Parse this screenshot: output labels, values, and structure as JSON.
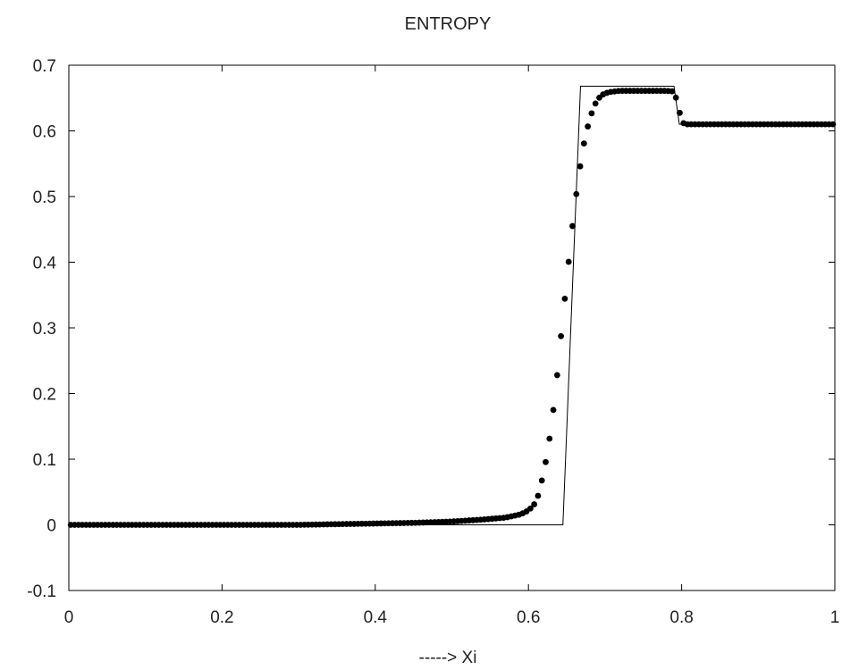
{
  "chart_data": {
    "type": "line",
    "title": "ENTROPY",
    "xlabel": "-----> Xi",
    "ylabel": "",
    "xlim": [
      0,
      1
    ],
    "ylim": [
      -0.1,
      0.7
    ],
    "grid": false,
    "x_ticks": [
      "0",
      "0.2",
      "0.4",
      "0.6",
      "0.8",
      "1"
    ],
    "y_ticks": [
      "-0.1",
      "0",
      "0.1",
      "0.2",
      "0.3",
      "0.4",
      "0.5",
      "0.6",
      "0.7"
    ],
    "series": [
      {
        "style": "line",
        "x": [
          0,
          0.645,
          0.668,
          0.79,
          0.797,
          1.0
        ],
        "y": [
          0,
          0,
          0.668,
          0.668,
          0.61,
          0.61
        ]
      },
      {
        "style": "markers",
        "x": [
          0.0,
          0.1,
          0.2,
          0.3,
          0.35,
          0.4,
          0.45,
          0.5,
          0.54,
          0.57,
          0.59,
          0.6,
          0.607,
          0.612,
          0.616,
          0.62,
          0.624,
          0.628,
          0.632,
          0.636,
          0.64,
          0.644,
          0.648,
          0.652,
          0.656,
          0.66,
          0.664,
          0.668,
          0.672,
          0.676,
          0.68,
          0.684,
          0.688,
          0.692,
          0.698,
          0.705,
          0.712,
          0.72,
          0.74,
          0.76,
          0.78,
          0.79,
          0.794,
          0.798,
          0.802,
          0.806,
          0.81,
          0.85,
          0.9,
          0.95,
          1.0
        ],
        "y": [
          0.0,
          0.0,
          0.0,
          0.0,
          0.001,
          0.002,
          0.003,
          0.005,
          0.008,
          0.011,
          0.016,
          0.022,
          0.03,
          0.042,
          0.06,
          0.08,
          0.105,
          0.135,
          0.17,
          0.21,
          0.258,
          0.305,
          0.35,
          0.395,
          0.44,
          0.48,
          0.518,
          0.55,
          0.578,
          0.6,
          0.618,
          0.632,
          0.643,
          0.65,
          0.656,
          0.659,
          0.66,
          0.661,
          0.661,
          0.661,
          0.661,
          0.66,
          0.645,
          0.625,
          0.612,
          0.61,
          0.61,
          0.61,
          0.61,
          0.61,
          0.61
        ]
      }
    ]
  }
}
